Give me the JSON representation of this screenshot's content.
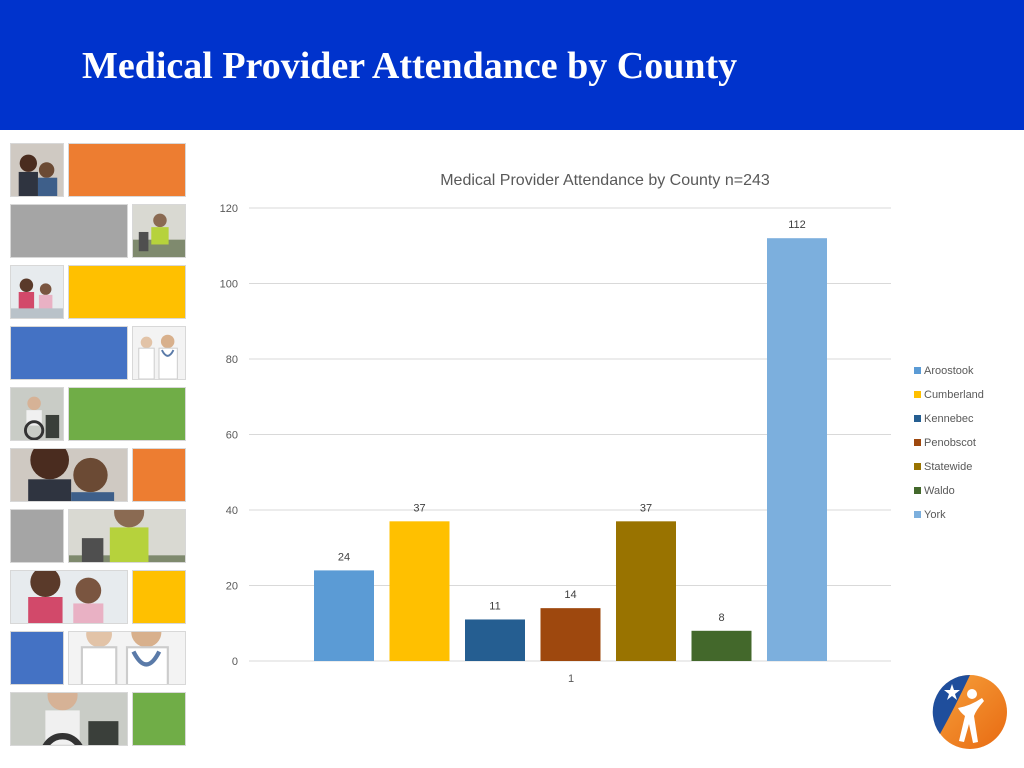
{
  "slide": {
    "title": "Medical Provider Attendance by County"
  },
  "mosaic": [
    {
      "kind": "photo",
      "icon": "family-photo-icon"
    },
    {
      "kind": "color",
      "color": "#ED7D31"
    },
    {
      "kind": "color",
      "color": "#A5A5A5"
    },
    {
      "kind": "photo",
      "icon": "worker-photo-icon"
    },
    {
      "kind": "photo",
      "icon": "children-photo-icon"
    },
    {
      "kind": "color",
      "color": "#FFC000"
    },
    {
      "kind": "color",
      "color": "#4472C4"
    },
    {
      "kind": "photo",
      "icon": "doctors-photo-icon"
    },
    {
      "kind": "photo",
      "icon": "wheelchair-photo-icon"
    },
    {
      "kind": "color",
      "color": "#70AD47"
    },
    {
      "kind": "photo",
      "icon": "family-photo-icon"
    },
    {
      "kind": "color",
      "color": "#ED7D31"
    },
    {
      "kind": "color",
      "color": "#A5A5A5"
    },
    {
      "kind": "photo",
      "icon": "worker-photo-icon"
    },
    {
      "kind": "photo",
      "icon": "children-photo-icon"
    },
    {
      "kind": "color",
      "color": "#FFC000"
    },
    {
      "kind": "color",
      "color": "#4472C4"
    },
    {
      "kind": "photo",
      "icon": "doctors-photo-icon"
    },
    {
      "kind": "photo",
      "icon": "wheelchair-photo-icon"
    },
    {
      "kind": "color",
      "color": "#70AD47"
    }
  ],
  "chart_data": {
    "type": "bar",
    "title": "Medical Provider Attendance by County  n=243",
    "categories": [
      "1"
    ],
    "series": [
      {
        "name": "Aroostook",
        "values": [
          24
        ],
        "color": "#5B9BD5"
      },
      {
        "name": "Cumberland",
        "values": [
          37
        ],
        "color": "#FFC000"
      },
      {
        "name": "Kennebec",
        "values": [
          11
        ],
        "color": "#255E91"
      },
      {
        "name": "Penobscot",
        "values": [
          14
        ],
        "color": "#9E480E"
      },
      {
        "name": "Statewide",
        "values": [
          37
        ],
        "color": "#997300"
      },
      {
        "name": "Waldo",
        "values": [
          8
        ],
        "color": "#43682B"
      },
      {
        "name": "York",
        "values": [
          112
        ],
        "color": "#7CAFDD"
      }
    ],
    "yticks": [
      "0",
      "20",
      "40",
      "60",
      "80",
      "100",
      "120"
    ],
    "ylim": [
      0,
      120
    ],
    "xlabel": "",
    "ylabel": "",
    "grid": true,
    "legend": "right"
  },
  "logo": {
    "icon": "organization-logo-icon"
  }
}
